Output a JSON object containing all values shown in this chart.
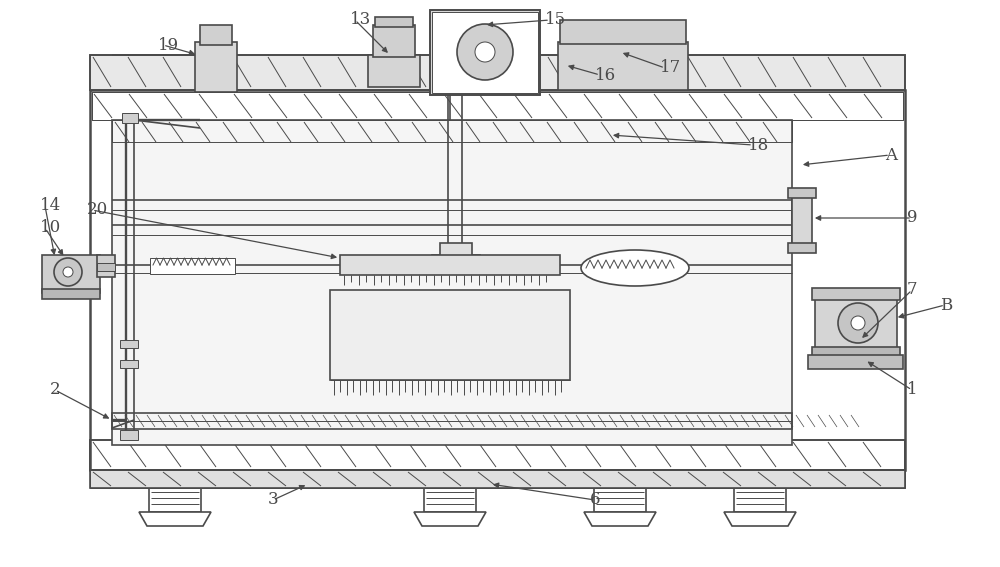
{
  "bg_color": "#ffffff",
  "lc": "#4a4a4a",
  "figsize": [
    10.0,
    5.67
  ],
  "dpi": 100
}
